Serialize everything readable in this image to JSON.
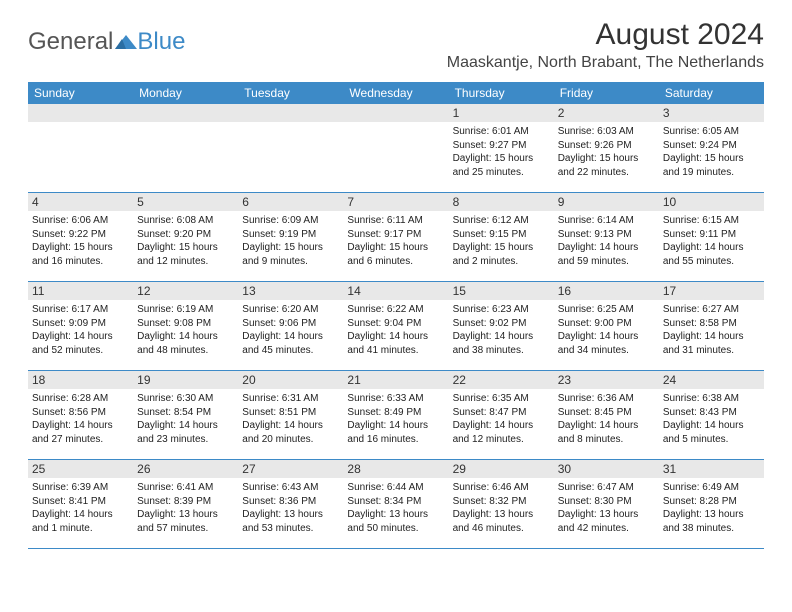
{
  "header": {
    "logo_general": "General",
    "logo_blue": "Blue",
    "month_title": "August 2024",
    "location": "Maaskantje, North Brabant, The Netherlands"
  },
  "colors": {
    "header_bar": "#3d8ac7",
    "daynum_bg": "#e8e8e8",
    "border": "#3d8ac7",
    "text": "#222222",
    "logo_gray": "#555555",
    "logo_blue": "#3d8ac7",
    "background": "#ffffff"
  },
  "typography": {
    "title_fontsize": 30,
    "location_fontsize": 16,
    "weekday_fontsize": 12,
    "daynum_fontsize": 12,
    "content_fontsize": 10
  },
  "weekdays": [
    "Sunday",
    "Monday",
    "Tuesday",
    "Wednesday",
    "Thursday",
    "Friday",
    "Saturday"
  ],
  "weeks": [
    [
      {
        "empty": true
      },
      {
        "empty": true
      },
      {
        "empty": true
      },
      {
        "empty": true
      },
      {
        "num": "1",
        "sunrise": "Sunrise: 6:01 AM",
        "sunset": "Sunset: 9:27 PM",
        "daylight1": "Daylight: 15 hours",
        "daylight2": "and 25 minutes."
      },
      {
        "num": "2",
        "sunrise": "Sunrise: 6:03 AM",
        "sunset": "Sunset: 9:26 PM",
        "daylight1": "Daylight: 15 hours",
        "daylight2": "and 22 minutes."
      },
      {
        "num": "3",
        "sunrise": "Sunrise: 6:05 AM",
        "sunset": "Sunset: 9:24 PM",
        "daylight1": "Daylight: 15 hours",
        "daylight2": "and 19 minutes."
      }
    ],
    [
      {
        "num": "4",
        "sunrise": "Sunrise: 6:06 AM",
        "sunset": "Sunset: 9:22 PM",
        "daylight1": "Daylight: 15 hours",
        "daylight2": "and 16 minutes."
      },
      {
        "num": "5",
        "sunrise": "Sunrise: 6:08 AM",
        "sunset": "Sunset: 9:20 PM",
        "daylight1": "Daylight: 15 hours",
        "daylight2": "and 12 minutes."
      },
      {
        "num": "6",
        "sunrise": "Sunrise: 6:09 AM",
        "sunset": "Sunset: 9:19 PM",
        "daylight1": "Daylight: 15 hours",
        "daylight2": "and 9 minutes."
      },
      {
        "num": "7",
        "sunrise": "Sunrise: 6:11 AM",
        "sunset": "Sunset: 9:17 PM",
        "daylight1": "Daylight: 15 hours",
        "daylight2": "and 6 minutes."
      },
      {
        "num": "8",
        "sunrise": "Sunrise: 6:12 AM",
        "sunset": "Sunset: 9:15 PM",
        "daylight1": "Daylight: 15 hours",
        "daylight2": "and 2 minutes."
      },
      {
        "num": "9",
        "sunrise": "Sunrise: 6:14 AM",
        "sunset": "Sunset: 9:13 PM",
        "daylight1": "Daylight: 14 hours",
        "daylight2": "and 59 minutes."
      },
      {
        "num": "10",
        "sunrise": "Sunrise: 6:15 AM",
        "sunset": "Sunset: 9:11 PM",
        "daylight1": "Daylight: 14 hours",
        "daylight2": "and 55 minutes."
      }
    ],
    [
      {
        "num": "11",
        "sunrise": "Sunrise: 6:17 AM",
        "sunset": "Sunset: 9:09 PM",
        "daylight1": "Daylight: 14 hours",
        "daylight2": "and 52 minutes."
      },
      {
        "num": "12",
        "sunrise": "Sunrise: 6:19 AM",
        "sunset": "Sunset: 9:08 PM",
        "daylight1": "Daylight: 14 hours",
        "daylight2": "and 48 minutes."
      },
      {
        "num": "13",
        "sunrise": "Sunrise: 6:20 AM",
        "sunset": "Sunset: 9:06 PM",
        "daylight1": "Daylight: 14 hours",
        "daylight2": "and 45 minutes."
      },
      {
        "num": "14",
        "sunrise": "Sunrise: 6:22 AM",
        "sunset": "Sunset: 9:04 PM",
        "daylight1": "Daylight: 14 hours",
        "daylight2": "and 41 minutes."
      },
      {
        "num": "15",
        "sunrise": "Sunrise: 6:23 AM",
        "sunset": "Sunset: 9:02 PM",
        "daylight1": "Daylight: 14 hours",
        "daylight2": "and 38 minutes."
      },
      {
        "num": "16",
        "sunrise": "Sunrise: 6:25 AM",
        "sunset": "Sunset: 9:00 PM",
        "daylight1": "Daylight: 14 hours",
        "daylight2": "and 34 minutes."
      },
      {
        "num": "17",
        "sunrise": "Sunrise: 6:27 AM",
        "sunset": "Sunset: 8:58 PM",
        "daylight1": "Daylight: 14 hours",
        "daylight2": "and 31 minutes."
      }
    ],
    [
      {
        "num": "18",
        "sunrise": "Sunrise: 6:28 AM",
        "sunset": "Sunset: 8:56 PM",
        "daylight1": "Daylight: 14 hours",
        "daylight2": "and 27 minutes."
      },
      {
        "num": "19",
        "sunrise": "Sunrise: 6:30 AM",
        "sunset": "Sunset: 8:54 PM",
        "daylight1": "Daylight: 14 hours",
        "daylight2": "and 23 minutes."
      },
      {
        "num": "20",
        "sunrise": "Sunrise: 6:31 AM",
        "sunset": "Sunset: 8:51 PM",
        "daylight1": "Daylight: 14 hours",
        "daylight2": "and 20 minutes."
      },
      {
        "num": "21",
        "sunrise": "Sunrise: 6:33 AM",
        "sunset": "Sunset: 8:49 PM",
        "daylight1": "Daylight: 14 hours",
        "daylight2": "and 16 minutes."
      },
      {
        "num": "22",
        "sunrise": "Sunrise: 6:35 AM",
        "sunset": "Sunset: 8:47 PM",
        "daylight1": "Daylight: 14 hours",
        "daylight2": "and 12 minutes."
      },
      {
        "num": "23",
        "sunrise": "Sunrise: 6:36 AM",
        "sunset": "Sunset: 8:45 PM",
        "daylight1": "Daylight: 14 hours",
        "daylight2": "and 8 minutes."
      },
      {
        "num": "24",
        "sunrise": "Sunrise: 6:38 AM",
        "sunset": "Sunset: 8:43 PM",
        "daylight1": "Daylight: 14 hours",
        "daylight2": "and 5 minutes."
      }
    ],
    [
      {
        "num": "25",
        "sunrise": "Sunrise: 6:39 AM",
        "sunset": "Sunset: 8:41 PM",
        "daylight1": "Daylight: 14 hours",
        "daylight2": "and 1 minute."
      },
      {
        "num": "26",
        "sunrise": "Sunrise: 6:41 AM",
        "sunset": "Sunset: 8:39 PM",
        "daylight1": "Daylight: 13 hours",
        "daylight2": "and 57 minutes."
      },
      {
        "num": "27",
        "sunrise": "Sunrise: 6:43 AM",
        "sunset": "Sunset: 8:36 PM",
        "daylight1": "Daylight: 13 hours",
        "daylight2": "and 53 minutes."
      },
      {
        "num": "28",
        "sunrise": "Sunrise: 6:44 AM",
        "sunset": "Sunset: 8:34 PM",
        "daylight1": "Daylight: 13 hours",
        "daylight2": "and 50 minutes."
      },
      {
        "num": "29",
        "sunrise": "Sunrise: 6:46 AM",
        "sunset": "Sunset: 8:32 PM",
        "daylight1": "Daylight: 13 hours",
        "daylight2": "and 46 minutes."
      },
      {
        "num": "30",
        "sunrise": "Sunrise: 6:47 AM",
        "sunset": "Sunset: 8:30 PM",
        "daylight1": "Daylight: 13 hours",
        "daylight2": "and 42 minutes."
      },
      {
        "num": "31",
        "sunrise": "Sunrise: 6:49 AM",
        "sunset": "Sunset: 8:28 PM",
        "daylight1": "Daylight: 13 hours",
        "daylight2": "and 38 minutes."
      }
    ]
  ]
}
